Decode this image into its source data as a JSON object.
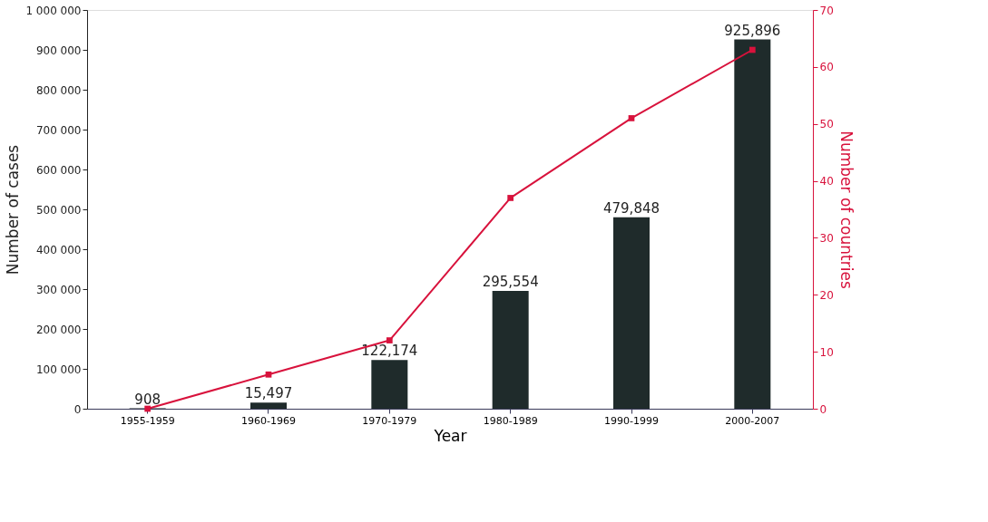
{
  "chart_data": {
    "type": "bar",
    "xlabel": "Year",
    "ylabel": "Number of cases",
    "y2label": "Number of countries",
    "categories": [
      "1955-1959",
      "1960-1969",
      "1970-1979",
      "1980-1989",
      "1990-1999",
      "2000-2007"
    ],
    "series": [
      {
        "color": "#1f2b2b",
        "values": [
          908,
          15497,
          122174,
          295554,
          479848,
          925896
        ],
        "value_labels": [
          "908",
          "15,497",
          "122,174",
          "295,554",
          "479,848",
          "925,896"
        ]
      },
      {
        "type": "line",
        "axis": "y2",
        "color": "#d8123c",
        "values": [
          0,
          6,
          12,
          37,
          51,
          63
        ],
        "marker": "square"
      }
    ],
    "ylim": [
      0,
      1000000
    ],
    "yticks": [
      0,
      {
        "value": 100000,
        "label": "100 000"
      },
      {
        "value": 200000,
        "label": "200 000"
      },
      {
        "value": 300000,
        "label": "300 000"
      },
      {
        "value": 400000,
        "label": "400 000"
      },
      {
        "value": 500000,
        "label": "500 000"
      },
      {
        "value": 600000,
        "label": "600 000"
      },
      {
        "value": 700000,
        "label": "700 000"
      },
      {
        "value": 800000,
        "label": "800 000"
      },
      {
        "value": 900000,
        "label": "900 000"
      },
      {
        "value": 1000000,
        "label": "1 000 000"
      }
    ],
    "y2lim": [
      0,
      70
    ],
    "y2ticks": [
      0,
      10,
      20,
      30,
      40,
      50,
      60,
      70
    ],
    "grid": false
  }
}
